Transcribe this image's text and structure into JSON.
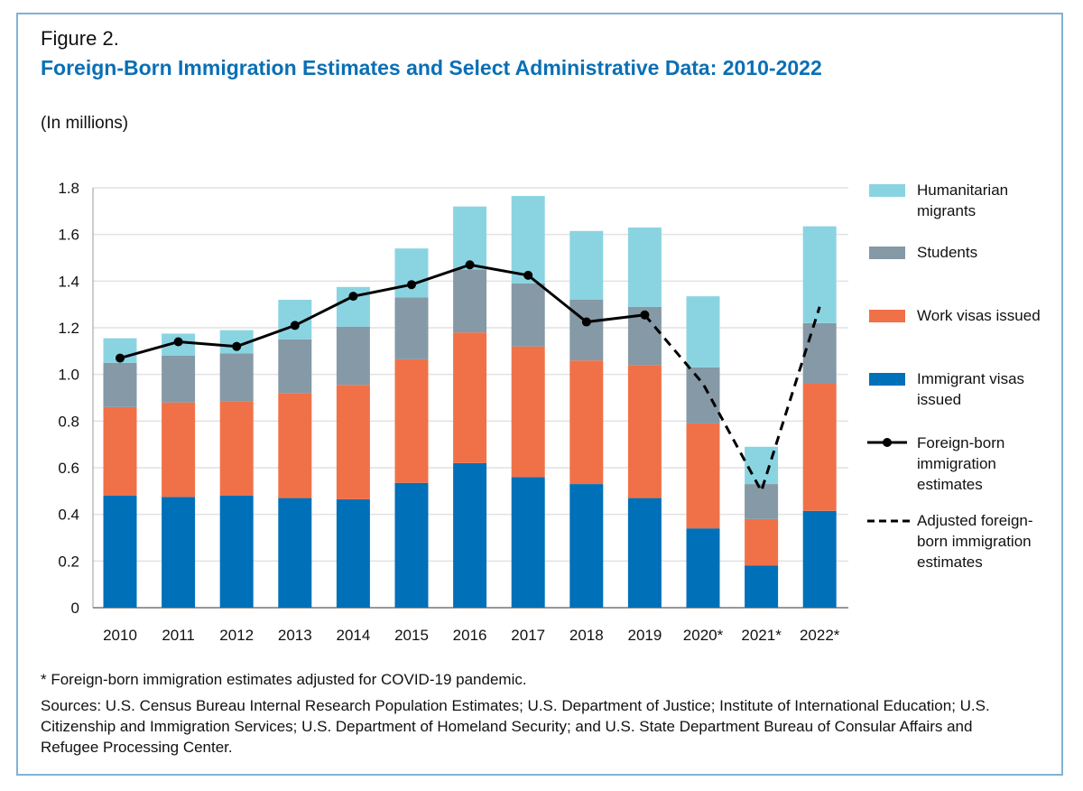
{
  "figure_label": "Figure 2.",
  "chart_data": {
    "type": "bar",
    "stacked": true,
    "title": "Foreign-Born Immigration Estimates and Select Administrative Data: 2010-2022",
    "subtitle": "(In millions)",
    "categories": [
      "2010",
      "2011",
      "2012",
      "2013",
      "2014",
      "2015",
      "2016",
      "2017",
      "2018",
      "2019",
      "2020*",
      "2021*",
      "2022*"
    ],
    "ylim": [
      0,
      1.8
    ],
    "yticks": [
      "0",
      "0.2",
      "0.4",
      "0.6",
      "0.8",
      "1.0",
      "1.2",
      "1.4",
      "1.6",
      "1.8"
    ],
    "grid": true,
    "legend_placement": "right",
    "series": [
      {
        "name": "Immigrant visas issued",
        "color": "#0070b8",
        "values": [
          0.48,
          0.475,
          0.48,
          0.47,
          0.465,
          0.535,
          0.62,
          0.56,
          0.53,
          0.47,
          0.34,
          0.18,
          0.415
        ]
      },
      {
        "name": "Work visas issued",
        "color": "#f07148",
        "values": [
          0.38,
          0.405,
          0.405,
          0.45,
          0.49,
          0.53,
          0.56,
          0.56,
          0.53,
          0.57,
          0.45,
          0.2,
          0.545
        ]
      },
      {
        "name": "Students",
        "color": "#8599a6",
        "values": [
          0.19,
          0.2,
          0.205,
          0.23,
          0.25,
          0.265,
          0.27,
          0.27,
          0.26,
          0.25,
          0.24,
          0.15,
          0.26
        ]
      },
      {
        "name": "Humanitarian migrants",
        "color": "#8ad4e2",
        "values": [
          0.105,
          0.095,
          0.1,
          0.17,
          0.17,
          0.21,
          0.27,
          0.375,
          0.295,
          0.34,
          0.305,
          0.16,
          0.415
        ]
      }
    ],
    "lines": [
      {
        "name": "Foreign-born immigration estimates",
        "style": "solid-markers",
        "color": "#000000",
        "categories": [
          "2010",
          "2011",
          "2012",
          "2013",
          "2014",
          "2015",
          "2016",
          "2017",
          "2018",
          "2019"
        ],
        "values": [
          1.07,
          1.14,
          1.12,
          1.21,
          1.335,
          1.385,
          1.47,
          1.425,
          1.225,
          1.255
        ]
      },
      {
        "name": "Adjusted foreign-born immigration estimates",
        "style": "dashed",
        "color": "#000000",
        "categories": [
          "2019",
          "2020*",
          "2021*",
          "2022*"
        ],
        "values": [
          1.255,
          0.96,
          0.5,
          1.29
        ]
      }
    ]
  },
  "legend": {
    "humanitarian": "Humanitarian migrants",
    "students": "Students",
    "work": "Work visas issued",
    "immigrant": "Immigrant visas issued",
    "estimates": "Foreign-born immigration estimates",
    "adjusted": "Adjusted foreign-born immigration estimates"
  },
  "footnote": "* Foreign-born immigration estimates adjusted for COVID-19 pandemic.",
  "sources": "Sources: U.S. Census Bureau Internal Research Population Estimates; U.S. Department of Justice; Institute of International Education; U.S. Citizenship and Immigration Services; U.S. Department of Homeland Security; and U.S. State Department Bureau of Consular Affairs and Refugee Processing Center."
}
